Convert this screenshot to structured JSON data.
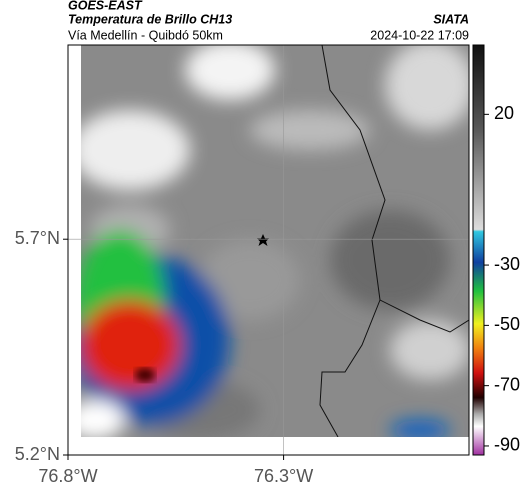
{
  "header": {
    "satellite": "GOES-EAST",
    "title": "Temperatura de Brillo CH13",
    "source": "SIATA",
    "subtitle": "Vía Medellín - Quibdó 50km",
    "timestamp": "2024-10-22 17:09"
  },
  "map": {
    "xlim": [
      -76.8,
      -75.87
    ],
    "ylim": [
      5.2,
      6.15
    ],
    "xticks": [
      {
        "value": -76.8,
        "label": "76.8°W"
      },
      {
        "value": -76.3,
        "label": "76.3°W"
      }
    ],
    "yticks": [
      {
        "value": 5.2,
        "label": "5.2°N"
      },
      {
        "value": 5.7,
        "label": "5.7°N"
      }
    ],
    "grid": true
  },
  "colorbar": {
    "lim": [
      -93,
      43
    ],
    "ticks": [
      20,
      -30,
      -50,
      -70,
      -90
    ]
  }
}
